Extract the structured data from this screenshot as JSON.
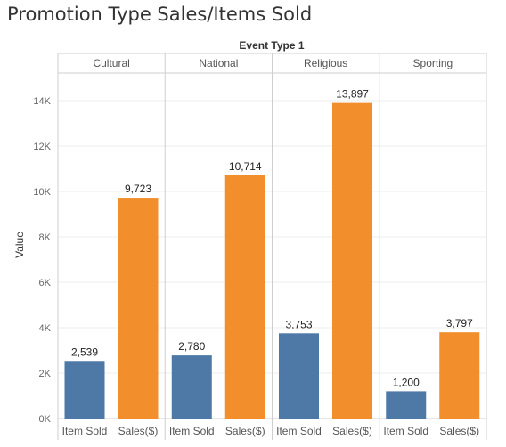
{
  "chart_data": {
    "type": "bar",
    "title": "Promotion Type Sales/Items Sold",
    "column_header": "Event Type 1",
    "ylabel": "Value",
    "ylim": [
      0,
      15000
    ],
    "yticks": [
      0,
      2000,
      4000,
      6000,
      8000,
      10000,
      12000,
      14000
    ],
    "ytick_labels": [
      "0K",
      "2K",
      "4K",
      "6K",
      "8K",
      "10K",
      "12K",
      "14K"
    ],
    "grid": true,
    "measures": [
      "Item Sold",
      "Sales($)"
    ],
    "colors": {
      "Item Sold": "#4e79a7",
      "Sales($)": "#f28e2b"
    },
    "panels": [
      {
        "name": "Cultural",
        "values": [
          2539,
          9723
        ],
        "labels": [
          "2,539",
          "9,723"
        ]
      },
      {
        "name": "National",
        "values": [
          2780,
          10714
        ],
        "labels": [
          "2,780",
          "10,714"
        ]
      },
      {
        "name": "Religious",
        "values": [
          3753,
          13897
        ],
        "labels": [
          "3,753",
          "13,897"
        ]
      },
      {
        "name": "Sporting",
        "values": [
          1200,
          3797
        ],
        "labels": [
          "1,200",
          "3,797"
        ]
      }
    ]
  }
}
